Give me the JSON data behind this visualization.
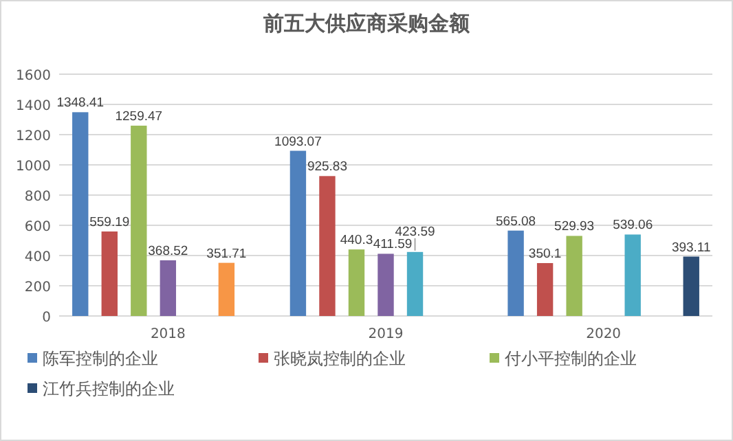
{
  "chart_data": {
    "type": "bar",
    "title": "前五大供应商采购金额",
    "categories": [
      "2018",
      "2019",
      "2020"
    ],
    "series": [
      {
        "name": "陈军控制的企业",
        "color": "#4f81bd",
        "values": [
          1348.41,
          1093.07,
          565.08
        ]
      },
      {
        "name": "张晓岚控制的企业",
        "color": "#c0504d",
        "values": [
          559.19,
          925.83,
          350.1
        ]
      },
      {
        "name": "付小平控制的企业",
        "color": "#9bbb59",
        "values": [
          1259.47,
          440.3,
          529.93
        ]
      },
      {
        "color": "#8064a2",
        "values": [
          368.52,
          411.59,
          null
        ]
      },
      {
        "color": "#4bacc6",
        "values": [
          null,
          423.59,
          539.06
        ]
      },
      {
        "color": "#f79646",
        "values": [
          351.71,
          null,
          null
        ]
      },
      {
        "name": "江竹兵控制的企业",
        "color": "#2c4d75",
        "values": [
          null,
          null,
          393.11
        ]
      }
    ],
    "ylim": [
      0,
      1600
    ],
    "yticks": [
      0,
      200,
      400,
      600,
      800,
      1000,
      1200,
      1400,
      1600
    ],
    "grid": "y",
    "legend": "bottom",
    "data_labels": true
  }
}
